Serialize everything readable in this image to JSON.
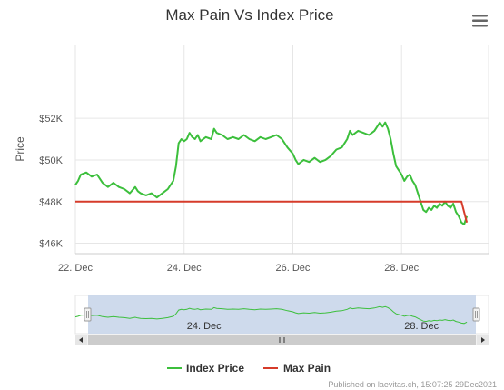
{
  "menu": {
    "icon": "hamburger-menu-icon"
  },
  "colors": {
    "index_price": "#3cbf3c",
    "max_pain": "#d63b2a",
    "grid": "#e6e6e6",
    "navigator_fill": "#c9d6ea",
    "scrollbar": "#cccccc"
  },
  "credits": "Published on laevitas.ch, 15:07:25 29Dec2021",
  "chart_data": {
    "type": "line",
    "title": "Max Pain Vs Index Price",
    "ylabel": "Price",
    "xlabel": "",
    "xlim_days": [
      22,
      29.6
    ],
    "ylim": [
      45500,
      55500
    ],
    "x_ticks": [
      {
        "day": 22,
        "label": "22. Dec"
      },
      {
        "day": 24,
        "label": "24. Dec"
      },
      {
        "day": 26,
        "label": "26. Dec"
      },
      {
        "day": 28,
        "label": "28. Dec"
      }
    ],
    "y_ticks": [
      {
        "value": 46000,
        "label": "$46K"
      },
      {
        "value": 48000,
        "label": "$48K"
      },
      {
        "value": 50000,
        "label": "$50K"
      },
      {
        "value": 52000,
        "label": "$52K"
      }
    ],
    "grid": true,
    "legend_position": "bottom-center",
    "series": [
      {
        "name": "Index Price",
        "points": [
          [
            22.0,
            48800
          ],
          [
            22.05,
            49000
          ],
          [
            22.1,
            49300
          ],
          [
            22.2,
            49400
          ],
          [
            22.3,
            49200
          ],
          [
            22.4,
            49300
          ],
          [
            22.5,
            48900
          ],
          [
            22.6,
            48700
          ],
          [
            22.7,
            48900
          ],
          [
            22.8,
            48700
          ],
          [
            22.9,
            48600
          ],
          [
            23.0,
            48400
          ],
          [
            23.1,
            48700
          ],
          [
            23.15,
            48500
          ],
          [
            23.2,
            48400
          ],
          [
            23.3,
            48300
          ],
          [
            23.4,
            48400
          ],
          [
            23.5,
            48200
          ],
          [
            23.6,
            48400
          ],
          [
            23.7,
            48600
          ],
          [
            23.75,
            48800
          ],
          [
            23.8,
            49000
          ],
          [
            23.85,
            49700
          ],
          [
            23.9,
            50800
          ],
          [
            23.95,
            51000
          ],
          [
            24.0,
            50900
          ],
          [
            24.05,
            51000
          ],
          [
            24.1,
            51300
          ],
          [
            24.15,
            51100
          ],
          [
            24.2,
            51000
          ],
          [
            24.25,
            51200
          ],
          [
            24.3,
            50900
          ],
          [
            24.4,
            51100
          ],
          [
            24.5,
            51000
          ],
          [
            24.55,
            51500
          ],
          [
            24.6,
            51300
          ],
          [
            24.7,
            51200
          ],
          [
            24.8,
            51000
          ],
          [
            24.9,
            51100
          ],
          [
            25.0,
            51000
          ],
          [
            25.1,
            51200
          ],
          [
            25.2,
            51000
          ],
          [
            25.3,
            50900
          ],
          [
            25.4,
            51100
          ],
          [
            25.5,
            51000
          ],
          [
            25.6,
            51100
          ],
          [
            25.7,
            51200
          ],
          [
            25.8,
            51000
          ],
          [
            25.9,
            50600
          ],
          [
            26.0,
            50300
          ],
          [
            26.05,
            50000
          ],
          [
            26.1,
            49800
          ],
          [
            26.2,
            50000
          ],
          [
            26.3,
            49900
          ],
          [
            26.4,
            50100
          ],
          [
            26.5,
            49900
          ],
          [
            26.6,
            50000
          ],
          [
            26.7,
            50200
          ],
          [
            26.8,
            50500
          ],
          [
            26.9,
            50600
          ],
          [
            27.0,
            51000
          ],
          [
            27.05,
            51400
          ],
          [
            27.1,
            51200
          ],
          [
            27.2,
            51400
          ],
          [
            27.3,
            51300
          ],
          [
            27.4,
            51200
          ],
          [
            27.5,
            51400
          ],
          [
            27.6,
            51800
          ],
          [
            27.65,
            51600
          ],
          [
            27.7,
            51800
          ],
          [
            27.75,
            51500
          ],
          [
            27.8,
            51000
          ],
          [
            27.85,
            50300
          ],
          [
            27.9,
            49700
          ],
          [
            27.95,
            49500
          ],
          [
            28.0,
            49300
          ],
          [
            28.05,
            49000
          ],
          [
            28.1,
            49200
          ],
          [
            28.15,
            49300
          ],
          [
            28.2,
            49000
          ],
          [
            28.25,
            48800
          ],
          [
            28.3,
            48400
          ],
          [
            28.35,
            48000
          ],
          [
            28.4,
            47600
          ],
          [
            28.45,
            47500
          ],
          [
            28.5,
            47700
          ],
          [
            28.55,
            47600
          ],
          [
            28.6,
            47800
          ],
          [
            28.65,
            47700
          ],
          [
            28.7,
            47900
          ],
          [
            28.75,
            47800
          ],
          [
            28.8,
            48000
          ],
          [
            28.85,
            47800
          ],
          [
            28.9,
            47700
          ],
          [
            28.95,
            47900
          ],
          [
            29.0,
            47500
          ],
          [
            29.05,
            47300
          ],
          [
            29.1,
            47000
          ],
          [
            29.15,
            46900
          ],
          [
            29.2,
            47300
          ]
        ]
      },
      {
        "name": "Max Pain",
        "points": [
          [
            22.0,
            48000
          ],
          [
            29.1,
            48000
          ],
          [
            29.2,
            47000
          ]
        ]
      }
    ]
  },
  "navigator": {
    "labels": [
      {
        "day": 24,
        "label": "24. Dec"
      },
      {
        "day": 28,
        "label": "28. Dec"
      }
    ],
    "scrollbar_grip": "scrollbar-grip-icon",
    "left_arrow": "chevron-left-icon",
    "right_arrow": "chevron-right-icon"
  }
}
